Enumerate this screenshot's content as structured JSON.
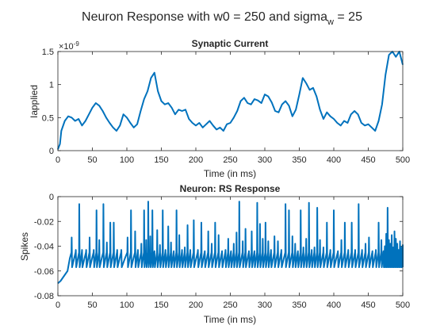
{
  "figure": {
    "suptitle_main": "Neuron Response with w0 = 250 and sigma",
    "suptitle_sub": "w",
    "suptitle_tail": " = 25"
  },
  "colors": {
    "line": "#0072BD",
    "axis": "#262626",
    "background": "#ffffff"
  },
  "chart_data": [
    {
      "type": "line",
      "title": "Synaptic Current",
      "xlabel": "Time (in ms)",
      "ylabel": "Iapplied",
      "exponent_base": "×10",
      "exponent_power": "-9",
      "xlim": [
        0,
        500
      ],
      "ylim": [
        0,
        1.5
      ],
      "xticks": [
        0,
        50,
        100,
        150,
        200,
        250,
        300,
        350,
        400,
        450,
        500
      ],
      "yticks": [
        0,
        0.5,
        1,
        1.5
      ],
      "ytick_labels": [
        "0",
        "0.5",
        "1",
        "1.5"
      ],
      "grid": false,
      "series": [
        {
          "x": [
            0,
            3,
            5,
            10,
            15,
            20,
            25,
            30,
            35,
            40,
            45,
            50,
            55,
            60,
            65,
            70,
            75,
            80,
            85,
            90,
            95,
            100,
            105,
            110,
            115,
            120,
            125,
            130,
            135,
            140,
            145,
            150,
            155,
            160,
            165,
            170,
            175,
            180,
            185,
            190,
            195,
            200,
            205,
            210,
            215,
            220,
            225,
            230,
            235,
            240,
            245,
            250,
            255,
            260,
            265,
            270,
            275,
            280,
            285,
            290,
            295,
            300,
            305,
            310,
            315,
            320,
            325,
            330,
            335,
            340,
            345,
            350,
            355,
            360,
            365,
            370,
            375,
            380,
            385,
            390,
            395,
            400,
            405,
            410,
            415,
            420,
            425,
            430,
            435,
            440,
            445,
            450,
            455,
            460,
            465,
            470,
            475,
            480,
            485,
            490,
            495,
            500
          ],
          "y": [
            0.02,
            0.1,
            0.3,
            0.45,
            0.52,
            0.5,
            0.45,
            0.48,
            0.38,
            0.45,
            0.55,
            0.65,
            0.72,
            0.68,
            0.6,
            0.5,
            0.42,
            0.35,
            0.3,
            0.38,
            0.55,
            0.5,
            0.42,
            0.35,
            0.4,
            0.6,
            0.78,
            0.9,
            1.1,
            1.18,
            0.9,
            0.75,
            0.7,
            0.72,
            0.65,
            0.55,
            0.62,
            0.6,
            0.62,
            0.48,
            0.42,
            0.38,
            0.42,
            0.35,
            0.4,
            0.45,
            0.38,
            0.32,
            0.35,
            0.3,
            0.4,
            0.42,
            0.5,
            0.6,
            0.75,
            0.8,
            0.72,
            0.7,
            0.78,
            0.76,
            0.72,
            0.85,
            0.82,
            0.73,
            0.6,
            0.58,
            0.7,
            0.75,
            0.68,
            0.52,
            0.62,
            0.85,
            1.1,
            1.02,
            0.92,
            0.95,
            0.82,
            0.62,
            0.48,
            0.58,
            0.52,
            0.48,
            0.42,
            0.38,
            0.45,
            0.42,
            0.55,
            0.6,
            0.55,
            0.42,
            0.38,
            0.4,
            0.35,
            0.3,
            0.45,
            0.7,
            1.15,
            1.45,
            1.5,
            1.42,
            1.5,
            1.3
          ]
        }
      ]
    },
    {
      "type": "line",
      "title": "Neuron: RS Response",
      "xlabel": "Time (in ms)",
      "ylabel": "Spikes",
      "xlim": [
        0,
        500
      ],
      "ylim": [
        -0.08,
        0
      ],
      "xticks": [
        0,
        50,
        100,
        150,
        200,
        250,
        300,
        350,
        400,
        450,
        500
      ],
      "yticks": [
        -0.08,
        -0.06,
        -0.04,
        -0.02,
        0
      ],
      "ytick_labels": [
        "-0.08",
        "-0.06",
        "-0.04",
        "-0.02",
        "0"
      ],
      "grid": false,
      "series": [
        {
          "baseline_start": -0.07,
          "reset": -0.057,
          "threshold": -0.045,
          "spike_times": [
            20,
            26,
            31,
            35,
            41,
            46,
            52,
            56,
            60,
            66,
            71,
            76,
            81,
            86,
            92,
            101,
            106,
            112,
            116,
            121,
            125,
            128,
            131,
            134,
            137,
            140,
            144,
            148,
            152,
            156,
            160,
            164,
            168,
            172,
            176,
            180,
            184,
            188,
            192,
            197,
            203,
            208,
            213,
            218,
            223,
            228,
            233,
            238,
            243,
            247,
            251,
            255,
            259,
            263,
            268,
            272,
            277,
            281,
            285,
            289,
            293,
            297,
            301,
            305,
            309,
            314,
            319,
            324,
            330,
            335,
            340,
            344,
            348,
            352,
            356,
            360,
            364,
            368,
            372,
            376,
            380,
            385,
            390,
            395,
            400,
            406,
            411,
            416,
            421,
            426,
            431,
            436,
            441,
            446,
            451,
            456,
            461,
            465,
            469,
            472,
            474,
            476,
            478,
            480,
            482,
            484,
            486,
            488,
            490,
            492,
            494,
            496,
            498,
            500
          ],
          "spike_peaks": [
            -0.033,
            -0.043,
            -0.006,
            -0.043,
            -0.043,
            -0.033,
            -0.043,
            -0.011,
            -0.035,
            -0.006,
            -0.037,
            -0.021,
            -0.021,
            -0.043,
            -0.043,
            -0.033,
            -0.011,
            -0.028,
            -0.043,
            -0.038,
            -0.011,
            -0.035,
            -0.004,
            -0.032,
            -0.011,
            -0.044,
            -0.027,
            -0.039,
            -0.011,
            -0.043,
            -0.024,
            -0.037,
            -0.044,
            -0.011,
            -0.031,
            -0.043,
            -0.041,
            -0.023,
            -0.043,
            -0.019,
            -0.043,
            -0.021,
            -0.044,
            -0.028,
            -0.038,
            -0.021,
            -0.031,
            -0.044,
            -0.043,
            -0.034,
            -0.044,
            -0.038,
            -0.029,
            -0.004,
            -0.036,
            -0.026,
            -0.044,
            -0.028,
            -0.044,
            -0.005,
            -0.022,
            -0.034,
            -0.021,
            -0.036,
            -0.043,
            -0.032,
            -0.036,
            -0.043,
            -0.006,
            -0.011,
            -0.032,
            -0.038,
            -0.044,
            -0.011,
            -0.041,
            -0.034,
            -0.005,
            -0.043,
            -0.041,
            -0.009,
            -0.035,
            -0.041,
            -0.021,
            -0.043,
            -0.011,
            -0.044,
            -0.035,
            -0.021,
            -0.043,
            -0.021,
            -0.043,
            -0.006,
            -0.043,
            -0.038,
            -0.033,
            -0.044,
            -0.043,
            -0.021,
            -0.035,
            -0.044,
            -0.04,
            -0.03,
            -0.009,
            -0.035,
            -0.038,
            -0.031,
            -0.041,
            -0.028,
            -0.034,
            -0.038,
            -0.043,
            -0.036,
            -0.041,
            -0.039
          ]
        }
      ]
    }
  ]
}
